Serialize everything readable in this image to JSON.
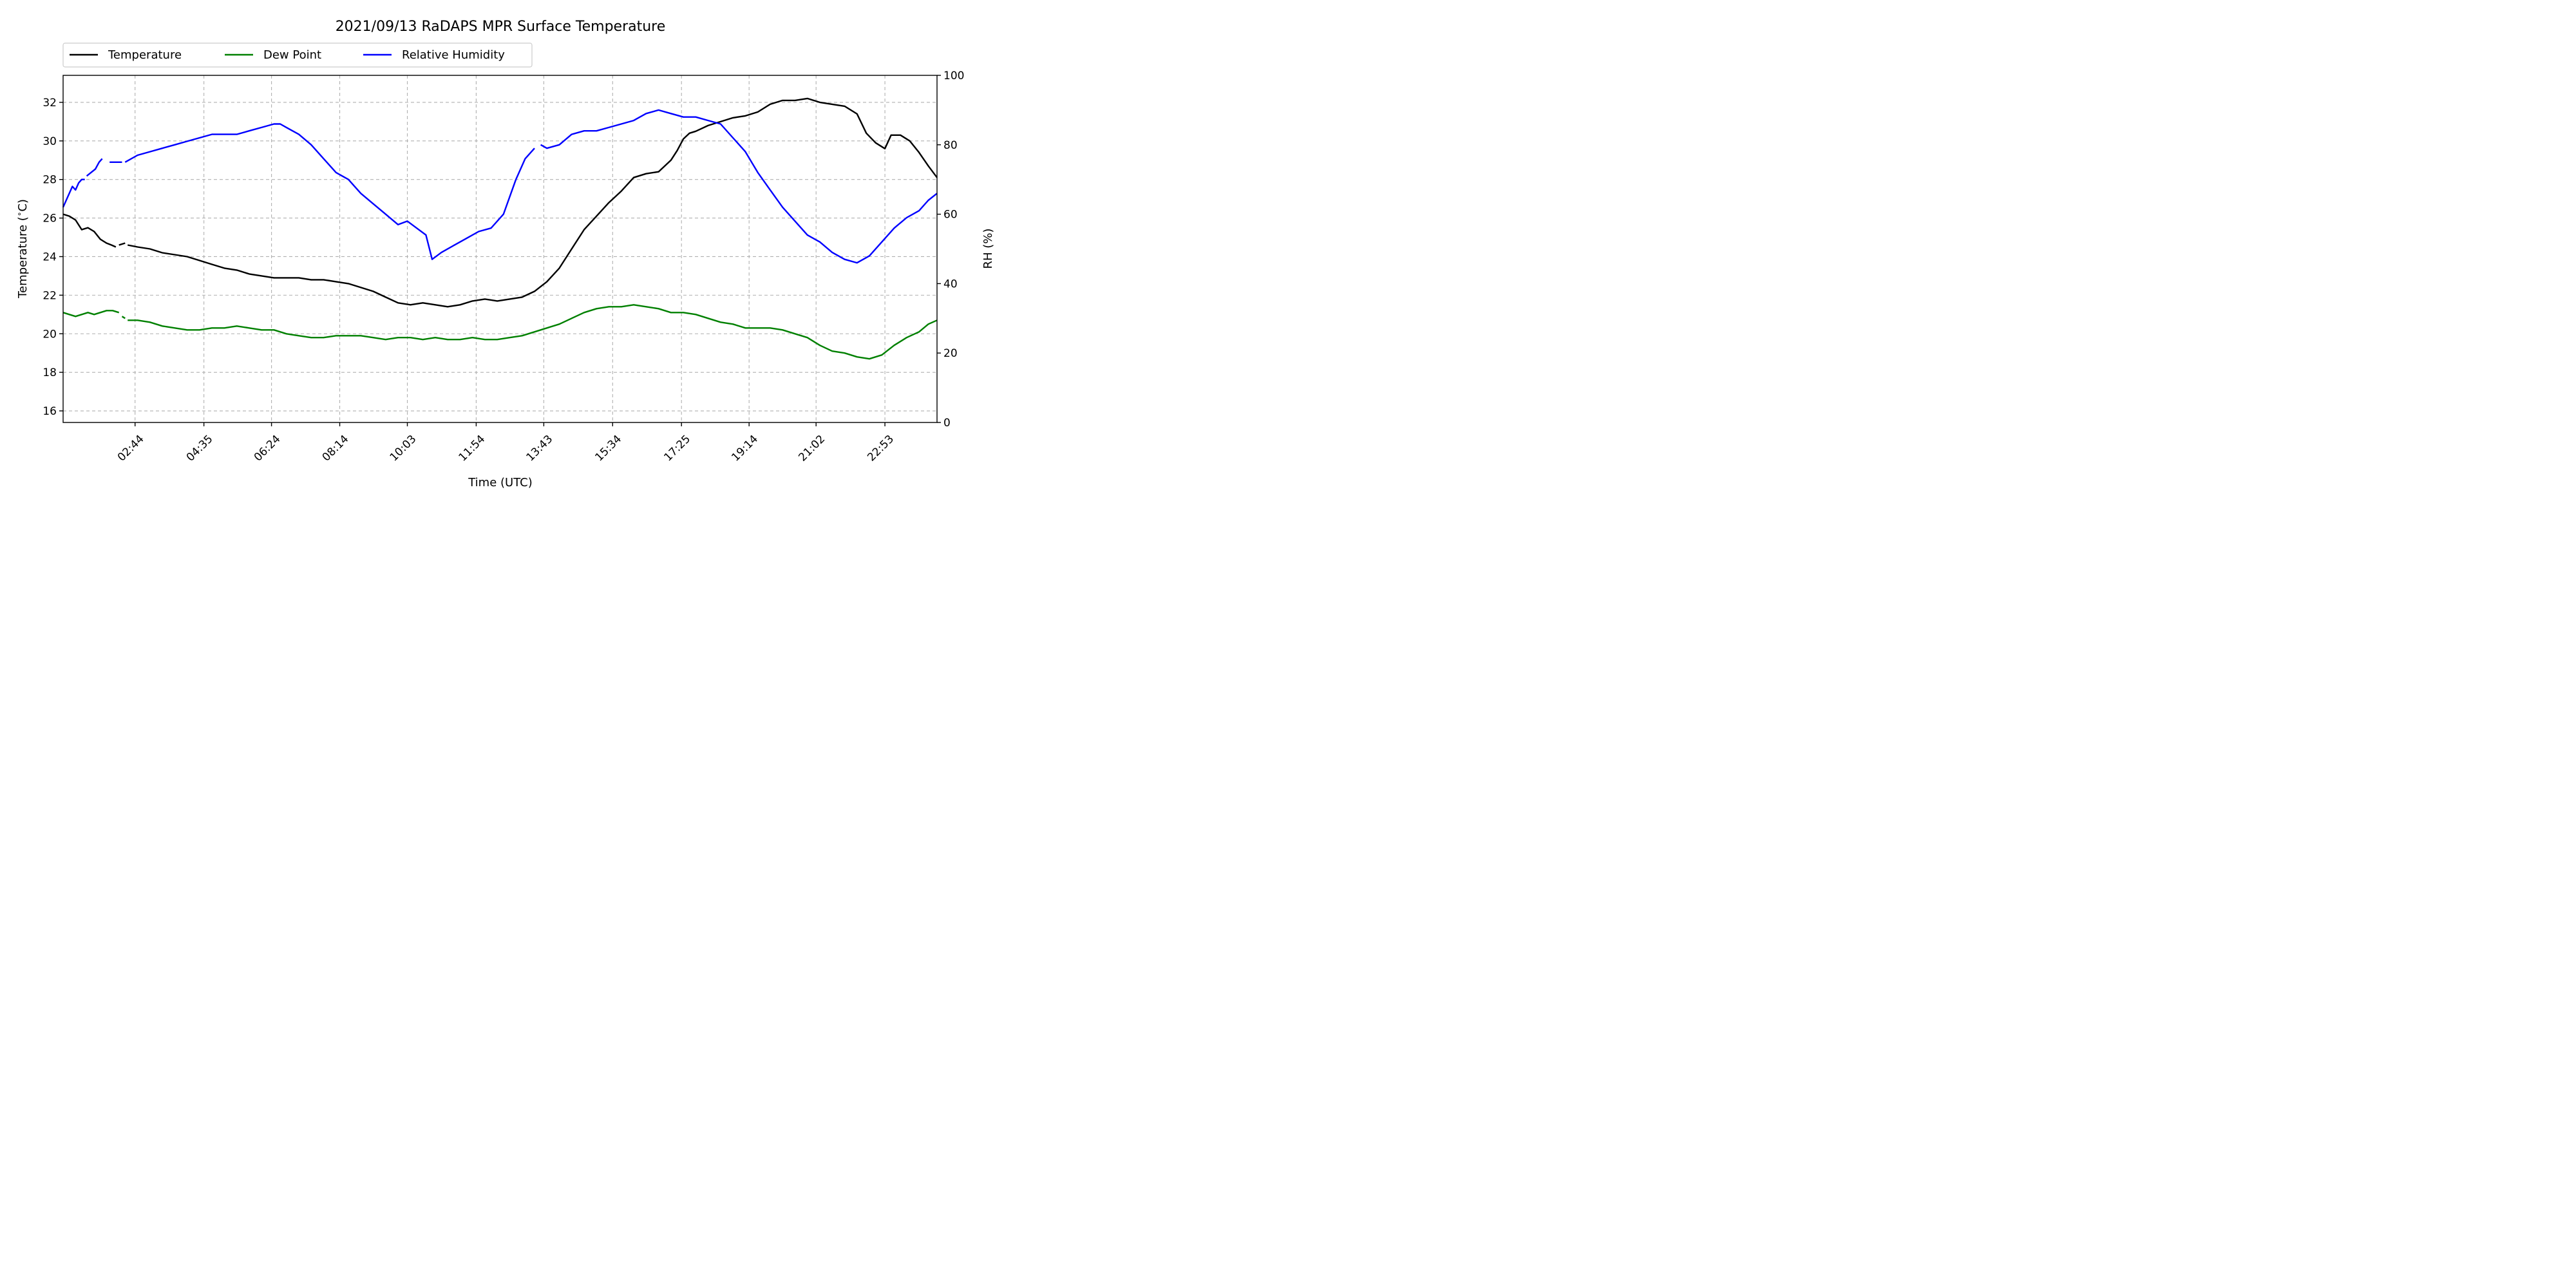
{
  "chart_data": {
    "type": "line",
    "title": "2021/09/13 RaDAPS MPR Surface Temperature",
    "xlabel": "Time (UTC)",
    "ylabel": "Temperature ($^\\circ$C)",
    "ylabel_display": "Temperature (",
    "ylabel_display_unit": "C)",
    "y2label": "RH (%)",
    "x_unit": "minutes since 00:48 UTC",
    "xlim": [
      0,
      1409
    ],
    "ylim": [
      15.4,
      33.4
    ],
    "y2lim": [
      0,
      100
    ],
    "yticks": [
      16,
      18,
      20,
      22,
      24,
      26,
      28,
      30,
      32
    ],
    "y2ticks": [
      0,
      20,
      40,
      60,
      80,
      100
    ],
    "xticks": [
      {
        "t": 116,
        "label": "02:44"
      },
      {
        "t": 227,
        "label": "04:35"
      },
      {
        "t": 336,
        "label": "06:24"
      },
      {
        "t": 446,
        "label": "08:14"
      },
      {
        "t": 555,
        "label": "10:03"
      },
      {
        "t": 666,
        "label": "11:54"
      },
      {
        "t": 775,
        "label": "13:43"
      },
      {
        "t": 886,
        "label": "15:34"
      },
      {
        "t": 997,
        "label": "17:25"
      },
      {
        "t": 1106,
        "label": "19:14"
      },
      {
        "t": 1214,
        "label": "21:02"
      },
      {
        "t": 1325,
        "label": "22:53"
      }
    ],
    "grid": true,
    "legend_placement": "top-left above plot",
    "series": [
      {
        "name": "Temperature",
        "axis": "left",
        "color": "#000000",
        "segments": [
          [
            [
              0,
              26.2
            ],
            [
              10,
              26.1
            ],
            [
              20,
              25.9
            ],
            [
              30,
              25.4
            ],
            [
              40,
              25.5
            ],
            [
              50,
              25.3
            ],
            [
              60,
              24.9
            ],
            [
              70,
              24.7
            ],
            [
              78,
              24.6
            ],
            [
              85,
              24.5
            ]
          ],
          [
            [
              90,
              24.6
            ],
            [
              100,
              24.7
            ]
          ],
          [
            [
              104,
              24.6
            ],
            [
              120,
              24.5
            ],
            [
              140,
              24.4
            ],
            [
              160,
              24.2
            ],
            [
              180,
              24.1
            ],
            [
              200,
              24.0
            ],
            [
              220,
              23.8
            ],
            [
              240,
              23.6
            ],
            [
              260,
              23.4
            ],
            [
              280,
              23.3
            ],
            [
              300,
              23.1
            ],
            [
              320,
              23.0
            ],
            [
              340,
              22.9
            ],
            [
              360,
              22.9
            ],
            [
              380,
              22.9
            ],
            [
              400,
              22.8
            ],
            [
              420,
              22.8
            ],
            [
              440,
              22.7
            ],
            [
              460,
              22.6
            ],
            [
              480,
              22.4
            ],
            [
              500,
              22.2
            ],
            [
              520,
              21.9
            ],
            [
              540,
              21.6
            ],
            [
              560,
              21.5
            ],
            [
              580,
              21.6
            ],
            [
              600,
              21.5
            ],
            [
              620,
              21.4
            ],
            [
              640,
              21.5
            ],
            [
              660,
              21.7
            ],
            [
              680,
              21.8
            ],
            [
              700,
              21.7
            ],
            [
              720,
              21.8
            ],
            [
              740,
              21.9
            ],
            [
              760,
              22.2
            ],
            [
              780,
              22.7
            ],
            [
              800,
              23.4
            ],
            [
              820,
              24.4
            ],
            [
              840,
              25.4
            ],
            [
              860,
              26.1
            ],
            [
              880,
              26.8
            ],
            [
              900,
              27.4
            ],
            [
              920,
              28.1
            ],
            [
              940,
              28.3
            ],
            [
              960,
              28.4
            ],
            [
              980,
              29.0
            ],
            [
              990,
              29.5
            ],
            [
              1000,
              30.1
            ],
            [
              1010,
              30.4
            ],
            [
              1020,
              30.5
            ],
            [
              1040,
              30.8
            ],
            [
              1060,
              31.0
            ],
            [
              1080,
              31.2
            ],
            [
              1100,
              31.3
            ],
            [
              1120,
              31.5
            ],
            [
              1140,
              31.9
            ],
            [
              1160,
              32.1
            ],
            [
              1180,
              32.1
            ],
            [
              1200,
              32.2
            ],
            [
              1220,
              32.0
            ],
            [
              1240,
              31.9
            ],
            [
              1260,
              31.8
            ],
            [
              1280,
              31.4
            ],
            [
              1295,
              30.4
            ],
            [
              1310,
              29.9
            ],
            [
              1325,
              29.6
            ],
            [
              1335,
              30.3
            ],
            [
              1350,
              30.3
            ],
            [
              1365,
              30.0
            ],
            [
              1380,
              29.4
            ],
            [
              1395,
              28.7
            ],
            [
              1409,
              28.1
            ]
          ]
        ]
      },
      {
        "name": "Dew Point",
        "axis": "left",
        "color": "#008000",
        "segments": [
          [
            [
              0,
              21.1
            ],
            [
              10,
              21.0
            ],
            [
              20,
              20.9
            ],
            [
              30,
              21.0
            ],
            [
              40,
              21.1
            ],
            [
              50,
              21.0
            ],
            [
              60,
              21.1
            ],
            [
              70,
              21.2
            ],
            [
              80,
              21.2
            ],
            [
              90,
              21.1
            ]
          ],
          [
            [
              95,
              20.9
            ],
            [
              100,
              20.8
            ]
          ],
          [
            [
              104,
              20.7
            ],
            [
              120,
              20.7
            ],
            [
              140,
              20.6
            ],
            [
              160,
              20.4
            ],
            [
              180,
              20.3
            ],
            [
              200,
              20.2
            ],
            [
              220,
              20.2
            ],
            [
              240,
              20.3
            ],
            [
              260,
              20.3
            ],
            [
              280,
              20.4
            ],
            [
              300,
              20.3
            ],
            [
              320,
              20.2
            ],
            [
              340,
              20.2
            ],
            [
              360,
              20.0
            ],
            [
              380,
              19.9
            ],
            [
              400,
              19.8
            ],
            [
              420,
              19.8
            ],
            [
              440,
              19.9
            ],
            [
              460,
              19.9
            ],
            [
              480,
              19.9
            ],
            [
              500,
              19.8
            ],
            [
              520,
              19.7
            ],
            [
              540,
              19.8
            ],
            [
              560,
              19.8
            ],
            [
              580,
              19.7
            ],
            [
              600,
              19.8
            ],
            [
              620,
              19.7
            ],
            [
              640,
              19.7
            ],
            [
              660,
              19.8
            ],
            [
              680,
              19.7
            ],
            [
              700,
              19.7
            ],
            [
              720,
              19.8
            ],
            [
              740,
              19.9
            ],
            [
              760,
              20.1
            ],
            [
              780,
              20.3
            ],
            [
              800,
              20.5
            ],
            [
              820,
              20.8
            ],
            [
              840,
              21.1
            ],
            [
              860,
              21.3
            ],
            [
              880,
              21.4
            ],
            [
              900,
              21.4
            ],
            [
              920,
              21.5
            ],
            [
              940,
              21.4
            ],
            [
              960,
              21.3
            ],
            [
              980,
              21.1
            ],
            [
              1000,
              21.1
            ],
            [
              1020,
              21.0
            ],
            [
              1040,
              20.8
            ],
            [
              1060,
              20.6
            ],
            [
              1080,
              20.5
            ],
            [
              1100,
              20.3
            ],
            [
              1120,
              20.3
            ],
            [
              1140,
              20.3
            ],
            [
              1160,
              20.2
            ],
            [
              1180,
              20.0
            ],
            [
              1200,
              19.8
            ],
            [
              1220,
              19.4
            ],
            [
              1240,
              19.1
            ],
            [
              1260,
              19.0
            ],
            [
              1280,
              18.8
            ],
            [
              1300,
              18.7
            ],
            [
              1320,
              18.9
            ],
            [
              1340,
              19.4
            ],
            [
              1360,
              19.8
            ],
            [
              1380,
              20.1
            ],
            [
              1395,
              20.5
            ],
            [
              1409,
              20.7
            ]
          ]
        ]
      },
      {
        "name": "Relative Humidity",
        "axis": "right",
        "color": "#0000ff",
        "segments": [
          [
            [
              0,
              62
            ],
            [
              5,
              64
            ],
            [
              10,
              66
            ],
            [
              15,
              68
            ],
            [
              20,
              67
            ],
            [
              25,
              69
            ],
            [
              30,
              70
            ],
            [
              35,
              70
            ]
          ],
          [
            [
              38,
              71
            ],
            [
              45,
              72
            ],
            [
              52,
              73
            ],
            [
              58,
              75
            ],
            [
              63,
              76
            ]
          ],
          [
            [
              75,
              75
            ],
            [
              85,
              75
            ],
            [
              95,
              75
            ]
          ],
          [
            [
              100,
              75
            ],
            [
              120,
              77
            ],
            [
              140,
              78
            ],
            [
              160,
              79
            ],
            [
              180,
              80
            ],
            [
              200,
              81
            ],
            [
              220,
              82
            ],
            [
              240,
              83
            ],
            [
              260,
              83
            ],
            [
              280,
              83
            ],
            [
              300,
              84
            ],
            [
              320,
              85
            ],
            [
              340,
              86
            ],
            [
              350,
              86
            ],
            [
              360,
              85
            ],
            [
              380,
              83
            ],
            [
              400,
              80
            ],
            [
              420,
              76
            ],
            [
              440,
              72
            ],
            [
              460,
              70
            ],
            [
              480,
              66
            ],
            [
              500,
              63
            ],
            [
              520,
              60
            ],
            [
              540,
              57
            ],
            [
              555,
              58
            ],
            [
              570,
              56
            ],
            [
              585,
              54
            ],
            [
              595,
              47
            ],
            [
              610,
              49
            ],
            [
              630,
              51
            ],
            [
              650,
              53
            ],
            [
              670,
              55
            ],
            [
              690,
              56
            ],
            [
              710,
              60
            ],
            [
              730,
              70
            ],
            [
              745,
              76
            ],
            [
              760,
              79
            ]
          ],
          [
            [
              770,
              80
            ],
            [
              780,
              79
            ],
            [
              800,
              80
            ],
            [
              820,
              83
            ],
            [
              840,
              84
            ],
            [
              860,
              84
            ],
            [
              880,
              85
            ],
            [
              900,
              86
            ],
            [
              920,
              87
            ],
            [
              940,
              89
            ],
            [
              960,
              90
            ],
            [
              980,
              89
            ],
            [
              1000,
              88
            ],
            [
              1020,
              88
            ],
            [
              1040,
              87
            ],
            [
              1060,
              86
            ],
            [
              1080,
              82
            ],
            [
              1100,
              78
            ],
            [
              1120,
              72
            ],
            [
              1140,
              67
            ],
            [
              1160,
              62
            ],
            [
              1180,
              58
            ],
            [
              1200,
              54
            ],
            [
              1220,
              52
            ],
            [
              1240,
              49
            ],
            [
              1260,
              47
            ],
            [
              1280,
              46
            ],
            [
              1300,
              48
            ],
            [
              1320,
              52
            ],
            [
              1340,
              56
            ],
            [
              1360,
              59
            ],
            [
              1380,
              61
            ],
            [
              1395,
              64
            ],
            [
              1409,
              66
            ]
          ]
        ]
      }
    ]
  }
}
